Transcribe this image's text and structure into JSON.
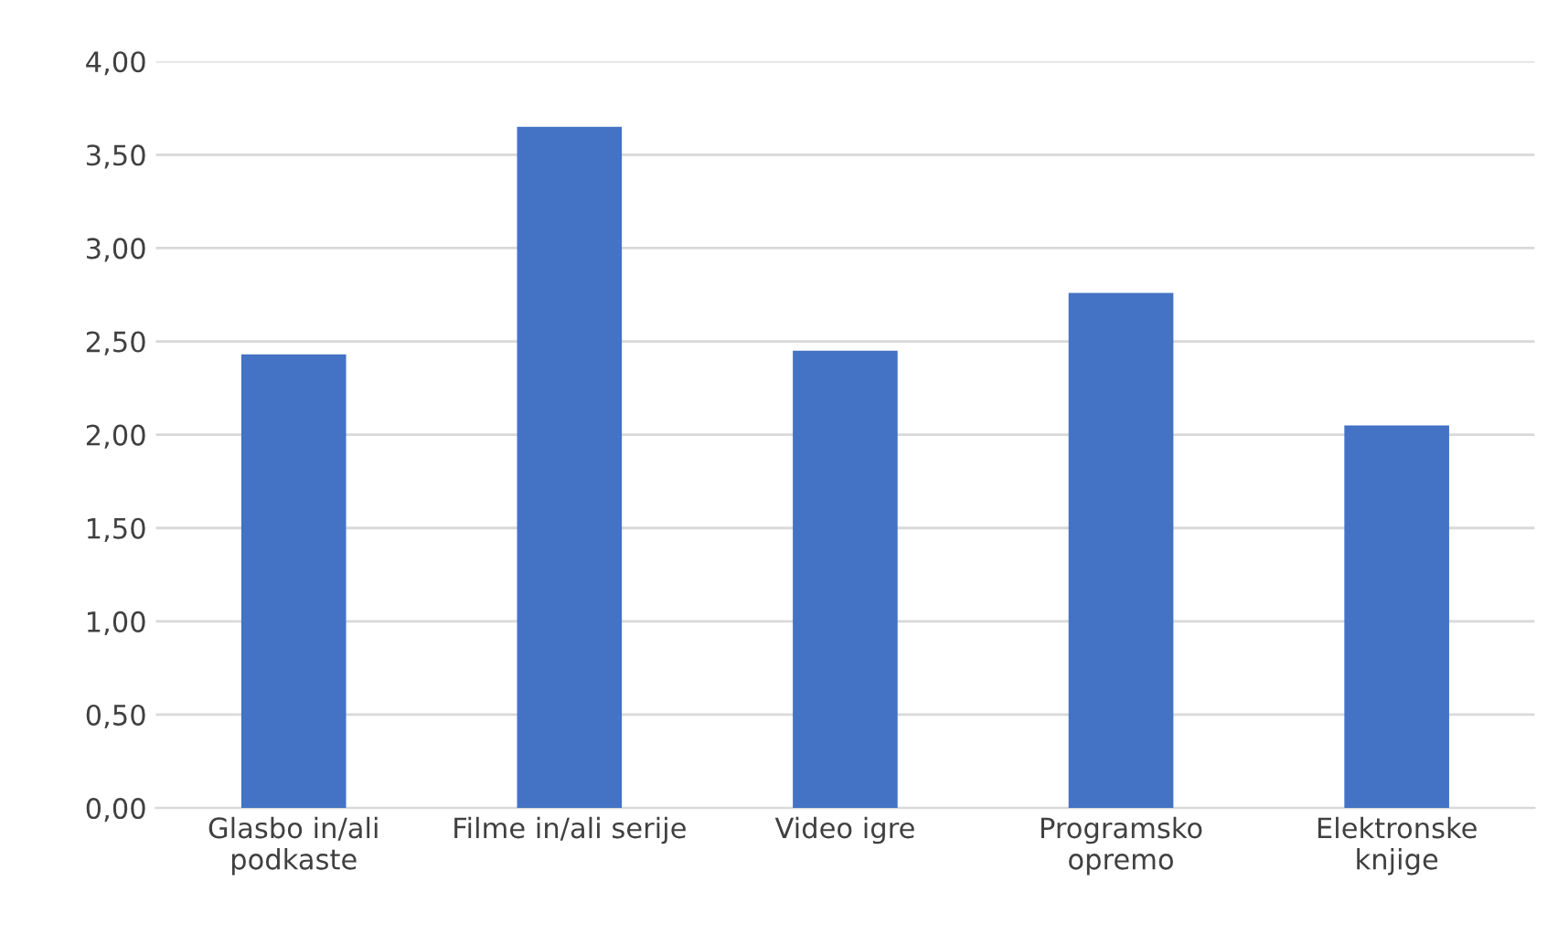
{
  "chart_data": {
    "type": "bar",
    "categories": [
      "Glasbo in/ali\npodkaste",
      "Filme in/ali serije",
      "Video igre",
      "Programsko\nopremo",
      "Elektronske\nknjige"
    ],
    "values": [
      2.43,
      3.65,
      2.45,
      2.76,
      2.05
    ],
    "color": "#4472c4",
    "ylim": [
      0,
      4
    ],
    "yticks": [
      {
        "value": 0,
        "label": "0,00"
      },
      {
        "value": 0.5,
        "label": "0,50"
      },
      {
        "value": 1,
        "label": "1,00"
      },
      {
        "value": 1.5,
        "label": "1,50"
      },
      {
        "value": 2,
        "label": "2,00"
      },
      {
        "value": 2.5,
        "label": "2,50"
      },
      {
        "value": 3,
        "label": "3,00"
      },
      {
        "value": 3.5,
        "label": "3,50"
      },
      {
        "value": 4,
        "label": "4,00"
      }
    ],
    "grid": "y"
  }
}
